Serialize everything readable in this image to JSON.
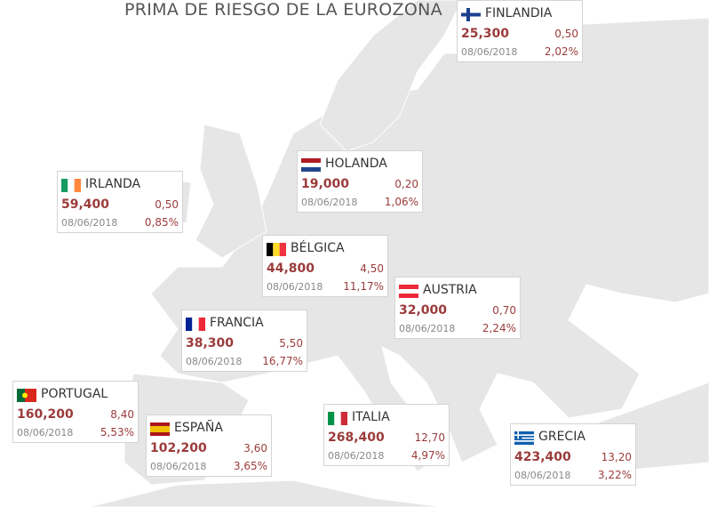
{
  "title": "PRIMA DE RIESGO DE LA EUROZONA",
  "countries": [
    {
      "name": "FINLANDIA",
      "value": "25,300",
      "change": "0,50",
      "date": "08/06/2018",
      "pct": "2,02%"
    },
    {
      "name": "IRLANDA",
      "value": "59,400",
      "change": "0,50",
      "date": "08/06/2018",
      "pct": "0,85%"
    },
    {
      "name": "HOLANDA",
      "value": "19,000",
      "change": "0,20",
      "date": "08/06/2018",
      "pct": "1,06%"
    },
    {
      "name": "BÉLGICA",
      "value": "44,800",
      "change": "4,50",
      "date": "08/06/2018",
      "pct": "11,17%"
    },
    {
      "name": "AUSTRIA",
      "value": "32,000",
      "change": "0,70",
      "date": "08/06/2018",
      "pct": "2,24%"
    },
    {
      "name": "FRANCIA",
      "value": "38,300",
      "change": "5,50",
      "date": "08/06/2018",
      "pct": "16,77%"
    },
    {
      "name": "PORTUGAL",
      "value": "160,200",
      "change": "8,40",
      "date": "08/06/2018",
      "pct": "5,53%"
    },
    {
      "name": "ESPAÑA",
      "value": "102,200",
      "change": "3,60",
      "date": "08/06/2018",
      "pct": "3,65%"
    },
    {
      "name": "ITALIA",
      "value": "268,400",
      "change": "12,70",
      "date": "08/06/2018",
      "pct": "4,97%"
    },
    {
      "name": "GRECIA",
      "value": "423,400",
      "change": "13,20",
      "date": "08/06/2018",
      "pct": "3,22%"
    }
  ]
}
